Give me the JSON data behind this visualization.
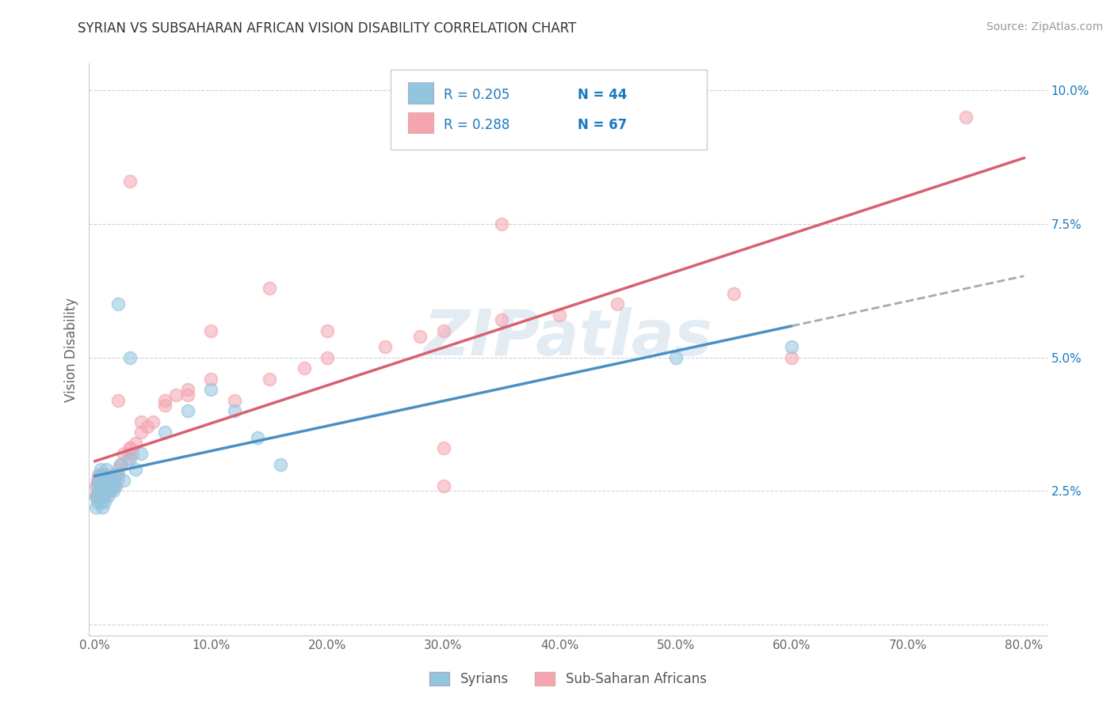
{
  "title": "SYRIAN VS SUBSAHARAN AFRICAN VISION DISABILITY CORRELATION CHART",
  "source": "Source: ZipAtlas.com",
  "ylabel": "Vision Disability",
  "xlim": [
    -0.005,
    0.82
  ],
  "ylim": [
    -0.002,
    0.105
  ],
  "xticks": [
    0.0,
    0.1,
    0.2,
    0.3,
    0.4,
    0.5,
    0.6,
    0.7,
    0.8
  ],
  "yticks": [
    0.0,
    0.025,
    0.05,
    0.075,
    0.1
  ],
  "ytick_labels": [
    "",
    "2.5%",
    "5.0%",
    "7.5%",
    "10.0%"
  ],
  "xtick_labels": [
    "0.0%",
    "10.0%",
    "20.0%",
    "30.0%",
    "40.0%",
    "50.0%",
    "60.0%",
    "70.0%",
    "80.0%"
  ],
  "syrian_color": "#92c5de",
  "subsaharan_color": "#f4a5b0",
  "syrian_line_color": "#4a90c4",
  "subsaharan_line_color": "#d96070",
  "syrian_R": 0.205,
  "syrian_N": 44,
  "subsaharan_R": 0.288,
  "subsaharan_N": 67,
  "legend_text_color": "#1a7abf",
  "watermark": "ZIPatlas",
  "background_color": "#ffffff",
  "grid_color": "#cccccc",
  "title_color": "#333333",
  "source_color": "#999999",
  "ylabel_color": "#666666",
  "ytick_color": "#1a7abf",
  "xtick_color": "#666666",
  "syrian_points_x": [
    0.001,
    0.001,
    0.002,
    0.002,
    0.003,
    0.003,
    0.004,
    0.004,
    0.005,
    0.005,
    0.005,
    0.006,
    0.006,
    0.007,
    0.007,
    0.008,
    0.008,
    0.009,
    0.01,
    0.01,
    0.011,
    0.012,
    0.013,
    0.014,
    0.015,
    0.016,
    0.017,
    0.018,
    0.02,
    0.022,
    0.025,
    0.03,
    0.035,
    0.04,
    0.06,
    0.08,
    0.1,
    0.12,
    0.14,
    0.16,
    0.03,
    0.02,
    0.5,
    0.6
  ],
  "syrian_points_y": [
    0.022,
    0.024,
    0.023,
    0.026,
    0.024,
    0.027,
    0.025,
    0.028,
    0.023,
    0.026,
    0.029,
    0.022,
    0.027,
    0.024,
    0.028,
    0.023,
    0.025,
    0.027,
    0.025,
    0.029,
    0.024,
    0.026,
    0.025,
    0.027,
    0.026,
    0.025,
    0.028,
    0.026,
    0.028,
    0.03,
    0.027,
    0.031,
    0.029,
    0.032,
    0.036,
    0.04,
    0.044,
    0.04,
    0.035,
    0.03,
    0.05,
    0.06,
    0.05,
    0.052
  ],
  "subsaharan_points_x": [
    0.001,
    0.001,
    0.002,
    0.002,
    0.003,
    0.003,
    0.004,
    0.004,
    0.005,
    0.005,
    0.006,
    0.006,
    0.007,
    0.007,
    0.008,
    0.008,
    0.009,
    0.01,
    0.01,
    0.011,
    0.012,
    0.013,
    0.014,
    0.015,
    0.016,
    0.017,
    0.018,
    0.019,
    0.02,
    0.022,
    0.025,
    0.028,
    0.03,
    0.032,
    0.035,
    0.04,
    0.045,
    0.05,
    0.06,
    0.07,
    0.08,
    0.1,
    0.12,
    0.15,
    0.18,
    0.2,
    0.25,
    0.28,
    0.3,
    0.3,
    0.35,
    0.4,
    0.45,
    0.55,
    0.6,
    0.03,
    0.04,
    0.06,
    0.08,
    0.02,
    0.1,
    0.2,
    0.15,
    0.35,
    0.75,
    0.3,
    0.03
  ],
  "subsaharan_points_y": [
    0.024,
    0.026,
    0.024,
    0.027,
    0.025,
    0.028,
    0.024,
    0.027,
    0.025,
    0.028,
    0.024,
    0.027,
    0.025,
    0.028,
    0.024,
    0.027,
    0.026,
    0.025,
    0.028,
    0.025,
    0.027,
    0.025,
    0.027,
    0.026,
    0.028,
    0.026,
    0.028,
    0.027,
    0.029,
    0.03,
    0.032,
    0.031,
    0.033,
    0.032,
    0.034,
    0.036,
    0.037,
    0.038,
    0.041,
    0.043,
    0.044,
    0.046,
    0.042,
    0.046,
    0.048,
    0.05,
    0.052,
    0.054,
    0.055,
    0.033,
    0.057,
    0.058,
    0.06,
    0.062,
    0.05,
    0.033,
    0.038,
    0.042,
    0.043,
    0.042,
    0.055,
    0.055,
    0.063,
    0.075,
    0.095,
    0.026,
    0.083
  ]
}
